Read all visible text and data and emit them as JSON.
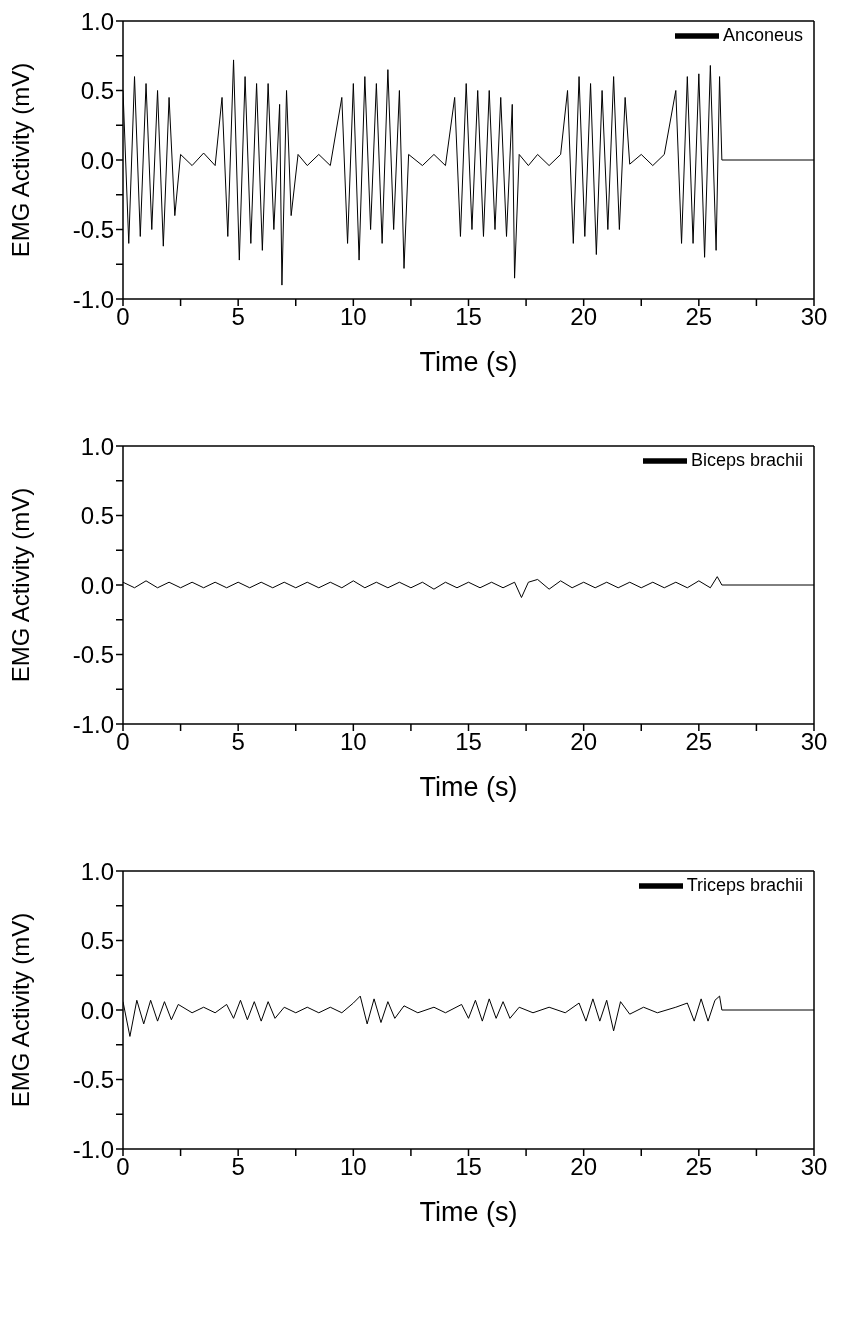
{
  "chart_data": [
    {
      "type": "line",
      "xlabel": "Time (s)",
      "ylabel": "EMG Activity (mV)",
      "legend": "top right",
      "xlim": [
        0,
        30
      ],
      "ylim": [
        -1,
        1
      ],
      "xticks": [
        0,
        {
          "value": 2.5,
          "label": null
        },
        5,
        {
          "value": 7.5,
          "label": null
        },
        10,
        {
          "value": 12.5,
          "label": null
        },
        15,
        {
          "value": 17.5,
          "label": null
        },
        20,
        {
          "value": 22.5,
          "label": null
        },
        25,
        {
          "value": 27.5,
          "label": null
        },
        30
      ],
      "yticks": [
        {
          "value": -1,
          "label": "-1.0"
        },
        {
          "value": -0.75,
          "label": null
        },
        {
          "value": -0.5,
          "label": "-0.5"
        },
        {
          "value": -0.25,
          "label": null
        },
        {
          "value": 0,
          "label": "0.0"
        },
        {
          "value": 0.25,
          "label": null
        },
        {
          "value": 0.5,
          "label": "0.5"
        },
        {
          "value": 0.75,
          "label": null
        },
        {
          "value": 1,
          "label": "1.0"
        }
      ],
      "x": [
        0,
        0.25,
        0.5,
        0.75,
        1.0,
        1.25,
        1.5,
        1.75,
        2.0,
        2.25,
        2.5,
        3.0,
        3.5,
        4.0,
        4.3,
        4.55,
        4.8,
        5.05,
        5.3,
        5.55,
        5.8,
        6.05,
        6.3,
        6.55,
        6.8,
        6.9,
        7.1,
        7.3,
        7.6,
        8.0,
        8.5,
        9.0,
        9.5,
        9.75,
        10.0,
        10.25,
        10.5,
        10.75,
        11.0,
        11.25,
        11.5,
        11.75,
        12.0,
        12.2,
        12.4,
        13.0,
        13.5,
        14.0,
        14.4,
        14.65,
        14.9,
        15.15,
        15.4,
        15.65,
        15.9,
        16.15,
        16.4,
        16.65,
        16.9,
        17.0,
        17.2,
        17.6,
        18.0,
        18.5,
        19.0,
        19.3,
        19.55,
        19.8,
        20.05,
        20.3,
        20.55,
        20.8,
        21.05,
        21.3,
        21.55,
        21.8,
        22.0,
        22.5,
        23.0,
        23.5,
        24.0,
        24.25,
        24.5,
        24.75,
        25.0,
        25.25,
        25.5,
        25.75,
        25.9,
        26.0,
        30
      ],
      "series": [
        {
          "name": "Anconeus",
          "color": "#000000",
          "values": [
            0.5,
            -0.6,
            0.6,
            -0.55,
            0.55,
            -0.5,
            0.5,
            -0.62,
            0.45,
            -0.4,
            0.04,
            -0.04,
            0.05,
            -0.04,
            0.45,
            -0.55,
            0.72,
            -0.72,
            0.6,
            -0.6,
            0.55,
            -0.65,
            0.55,
            -0.5,
            0.4,
            -0.9,
            0.5,
            -0.4,
            0.04,
            -0.04,
            0.04,
            -0.04,
            0.45,
            -0.6,
            0.55,
            -0.72,
            0.6,
            -0.5,
            0.55,
            -0.6,
            0.65,
            -0.5,
            0.5,
            -0.78,
            0.04,
            -0.04,
            0.04,
            -0.04,
            0.45,
            -0.55,
            0.55,
            -0.5,
            0.5,
            -0.55,
            0.5,
            -0.5,
            0.45,
            -0.55,
            0.4,
            -0.85,
            0.04,
            -0.04,
            0.04,
            -0.04,
            0.04,
            0.5,
            -0.6,
            0.6,
            -0.55,
            0.55,
            -0.68,
            0.5,
            -0.5,
            0.6,
            -0.5,
            0.45,
            -0.03,
            0.04,
            -0.04,
            0.04,
            0.5,
            -0.6,
            0.6,
            -0.6,
            0.62,
            -0.7,
            0.68,
            -0.65,
            0.6,
            0,
            0
          ]
        }
      ]
    },
    {
      "type": "line",
      "xlabel": "Time (s)",
      "ylabel": "EMG Activity (mV)",
      "legend": "top right",
      "xlim": [
        0,
        30
      ],
      "ylim": [
        -1,
        1
      ],
      "xticks": [
        0,
        {
          "value": 2.5,
          "label": null
        },
        5,
        {
          "value": 7.5,
          "label": null
        },
        10,
        {
          "value": 12.5,
          "label": null
        },
        15,
        {
          "value": 17.5,
          "label": null
        },
        20,
        {
          "value": 22.5,
          "label": null
        },
        25,
        {
          "value": 27.5,
          "label": null
        },
        30
      ],
      "yticks": [
        {
          "value": -1,
          "label": "-1.0"
        },
        {
          "value": -0.75,
          "label": null
        },
        {
          "value": -0.5,
          "label": "-0.5"
        },
        {
          "value": -0.25,
          "label": null
        },
        {
          "value": 0,
          "label": "0.0"
        },
        {
          "value": 0.25,
          "label": null
        },
        {
          "value": 0.5,
          "label": "0.5"
        },
        {
          "value": 0.75,
          "label": null
        },
        {
          "value": 1,
          "label": "1.0"
        }
      ],
      "x": [
        0,
        0.5,
        1,
        1.5,
        2,
        2.5,
        3,
        3.5,
        4,
        4.5,
        5,
        5.5,
        6,
        6.5,
        7,
        7.5,
        8,
        8.5,
        9,
        9.5,
        10,
        10.5,
        11,
        11.5,
        12,
        12.5,
        13,
        13.5,
        14,
        14.5,
        15,
        15.5,
        16,
        16.5,
        17,
        17.3,
        17.6,
        18,
        18.5,
        19,
        19.5,
        20,
        20.5,
        21,
        21.5,
        22,
        22.5,
        23,
        23.5,
        24,
        24.5,
        25,
        25.5,
        25.8,
        26,
        30
      ],
      "series": [
        {
          "name": "Biceps brachii",
          "color": "#000000",
          "values": [
            0.02,
            -0.02,
            0.03,
            -0.02,
            0.02,
            -0.02,
            0.02,
            -0.02,
            0.02,
            -0.02,
            0.02,
            -0.02,
            0.02,
            -0.02,
            0.02,
            -0.02,
            0.02,
            -0.02,
            0.02,
            -0.02,
            0.03,
            -0.02,
            0.02,
            -0.02,
            0.02,
            -0.02,
            0.02,
            -0.03,
            0.02,
            -0.02,
            0.02,
            -0.02,
            0.02,
            -0.02,
            0.02,
            -0.09,
            0.02,
            0.04,
            -0.03,
            0.03,
            -0.02,
            0.02,
            -0.02,
            0.02,
            -0.02,
            0.02,
            -0.02,
            0.02,
            -0.02,
            0.02,
            -0.02,
            0.03,
            -0.02,
            0.06,
            0,
            0
          ]
        }
      ]
    },
    {
      "type": "line",
      "xlabel": "Time (s)",
      "ylabel": "EMG Activity (mV)",
      "legend": "top right",
      "xlim": [
        0,
        30
      ],
      "ylim": [
        -1,
        1
      ],
      "xticks": [
        0,
        {
          "value": 2.5,
          "label": null
        },
        5,
        {
          "value": 7.5,
          "label": null
        },
        10,
        {
          "value": 12.5,
          "label": null
        },
        15,
        {
          "value": 17.5,
          "label": null
        },
        20,
        {
          "value": 22.5,
          "label": null
        },
        25,
        {
          "value": 27.5,
          "label": null
        },
        30
      ],
      "yticks": [
        {
          "value": -1,
          "label": "-1.0"
        },
        {
          "value": -0.75,
          "label": null
        },
        {
          "value": -0.5,
          "label": "-0.5"
        },
        {
          "value": -0.25,
          "label": null
        },
        {
          "value": 0,
          "label": "0.0"
        },
        {
          "value": 0.25,
          "label": null
        },
        {
          "value": 0.5,
          "label": "0.5"
        },
        {
          "value": 0.75,
          "label": null
        },
        {
          "value": 1,
          "label": "1.0"
        }
      ],
      "x": [
        0,
        0.3,
        0.6,
        0.9,
        1.2,
        1.5,
        1.8,
        2.1,
        2.4,
        3,
        3.5,
        4,
        4.5,
        4.8,
        5.1,
        5.4,
        5.7,
        6,
        6.3,
        6.6,
        7,
        7.5,
        8,
        8.5,
        9,
        9.5,
        10,
        10.3,
        10.6,
        10.9,
        11.2,
        11.5,
        11.8,
        12.2,
        12.8,
        13.5,
        14,
        14.7,
        15,
        15.3,
        15.6,
        15.9,
        16.2,
        16.5,
        16.8,
        17.2,
        17.8,
        18.5,
        19.2,
        19.8,
        20.1,
        20.4,
        20.7,
        21,
        21.3,
        21.6,
        22,
        22.6,
        23.2,
        24,
        24.5,
        24.8,
        25.1,
        25.4,
        25.7,
        25.9,
        26,
        30
      ],
      "series": [
        {
          "name": "Triceps brachii",
          "color": "#000000",
          "values": [
            0.06,
            -0.19,
            0.07,
            -0.1,
            0.07,
            -0.08,
            0.06,
            -0.07,
            0.04,
            -0.02,
            0.02,
            -0.02,
            0.04,
            -0.06,
            0.07,
            -0.07,
            0.06,
            -0.08,
            0.06,
            -0.06,
            0.02,
            -0.02,
            0.02,
            -0.02,
            0.02,
            -0.02,
            0.05,
            0.1,
            -0.1,
            0.08,
            -0.09,
            0.06,
            -0.06,
            0.03,
            -0.02,
            0.02,
            -0.02,
            0.04,
            -0.06,
            0.07,
            -0.08,
            0.08,
            -0.06,
            0.06,
            -0.06,
            0.02,
            -0.02,
            0.02,
            -0.02,
            0.05,
            -0.08,
            0.08,
            -0.08,
            0.07,
            -0.15,
            0.06,
            -0.03,
            0.02,
            -0.02,
            0.02,
            0.05,
            -0.08,
            0.08,
            -0.08,
            0.07,
            0.1,
            0,
            0
          ]
        }
      ]
    }
  ]
}
